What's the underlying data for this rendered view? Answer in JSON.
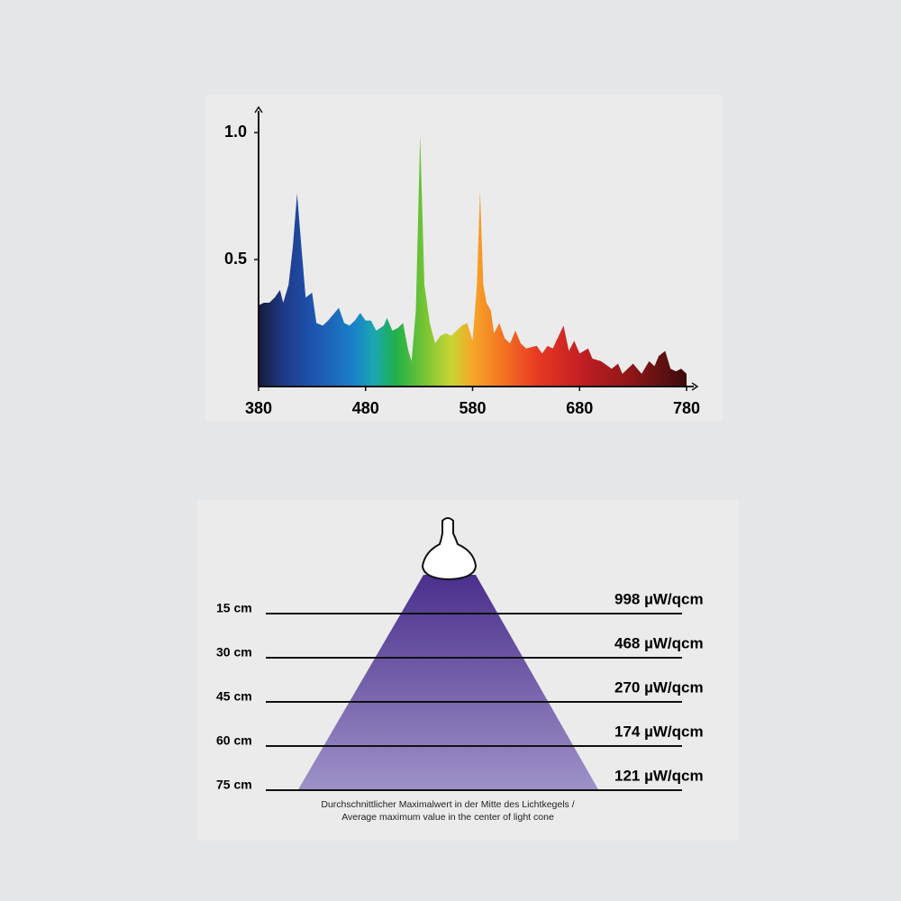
{
  "chart_data": [
    {
      "type": "area",
      "x": [
        380,
        385,
        390,
        395,
        400,
        403,
        408,
        412,
        416,
        420,
        424,
        430,
        434,
        440,
        445,
        455,
        460,
        465,
        470,
        475,
        480,
        485,
        490,
        497,
        500,
        505,
        510,
        515,
        520,
        523,
        527,
        531,
        535,
        540,
        545,
        550,
        555,
        560,
        570,
        575,
        580,
        584,
        587,
        590,
        593,
        597,
        600,
        605,
        610,
        615,
        620,
        625,
        630,
        640,
        645,
        650,
        655,
        665,
        670,
        675,
        680,
        688,
        692,
        700,
        710,
        716,
        720,
        730,
        738,
        745,
        750,
        754,
        760,
        765,
        770,
        775,
        780
      ],
      "values": [
        0.32,
        0.33,
        0.33,
        0.35,
        0.38,
        0.33,
        0.4,
        0.55,
        0.76,
        0.55,
        0.35,
        0.37,
        0.25,
        0.24,
        0.26,
        0.31,
        0.25,
        0.24,
        0.26,
        0.29,
        0.26,
        0.26,
        0.22,
        0.24,
        0.27,
        0.22,
        0.23,
        0.25,
        0.14,
        0.1,
        0.3,
        0.99,
        0.4,
        0.25,
        0.17,
        0.2,
        0.21,
        0.2,
        0.24,
        0.25,
        0.18,
        0.4,
        0.77,
        0.4,
        0.33,
        0.3,
        0.21,
        0.25,
        0.19,
        0.17,
        0.22,
        0.17,
        0.15,
        0.16,
        0.13,
        0.16,
        0.15,
        0.24,
        0.14,
        0.18,
        0.13,
        0.15,
        0.11,
        0.1,
        0.07,
        0.09,
        0.05,
        0.09,
        0.05,
        0.1,
        0.08,
        0.12,
        0.14,
        0.07,
        0.06,
        0.07,
        0.05
      ],
      "xlim": [
        380,
        780
      ],
      "xticks": [
        380,
        480,
        580,
        680,
        780
      ],
      "ylim": [
        0,
        1.1
      ],
      "yticks": [
        {
          "value": 0.5,
          "label": "0.5"
        },
        {
          "value": 1,
          "label": "1.0"
        }
      ]
    },
    {
      "type": "cone",
      "categories": [
        "15 cm",
        "30 cm",
        "45 cm",
        "60 cm",
        "75 cm"
      ],
      "values": [
        998,
        468,
        270,
        174,
        121
      ],
      "value_labels": [
        "998 µW/qcm",
        "468 µW/qcm",
        "270 µW/qcm",
        "174 µW/qcm",
        "121 µW/qcm"
      ],
      "note": [
        "Durchschnittlicher Maximalwert in der Mitte des Lichtkegels /",
        "Average maximum value in the center of light cone"
      ]
    }
  ]
}
